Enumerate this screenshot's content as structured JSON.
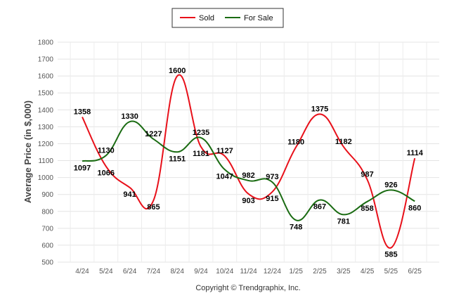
{
  "chart_data": {
    "type": "line",
    "categories": [
      "4/24",
      "5/24",
      "6/24",
      "7/24",
      "8/24",
      "9/24",
      "10/24",
      "11/24",
      "12/24",
      "1/25",
      "2/25",
      "3/25",
      "4/25",
      "5/25",
      "6/25"
    ],
    "series": [
      {
        "name": "Sold",
        "color": "#e8101a",
        "values": [
          1358,
          1066,
          941,
          865,
          1600,
          1181,
          1127,
          903,
          915,
          1180,
          1375,
          1182,
          987,
          585,
          1114
        ]
      },
      {
        "name": "For Sale",
        "color": "#1a6b12",
        "values": [
          1097,
          1130,
          1330,
          1227,
          1151,
          1235,
          1047,
          982,
          973,
          748,
          867,
          781,
          858,
          926,
          860
        ]
      }
    ],
    "ylabel": "Average Price (in $,000)",
    "xlabel": "",
    "ylim": [
      500,
      1800
    ],
    "yticks": [
      500,
      600,
      700,
      800,
      900,
      1000,
      1100,
      1200,
      1300,
      1400,
      1500,
      1600,
      1700,
      1800
    ],
    "grid": true,
    "legend_position": "top-center",
    "footer": "Copyright © Trendgraphix, Inc."
  }
}
